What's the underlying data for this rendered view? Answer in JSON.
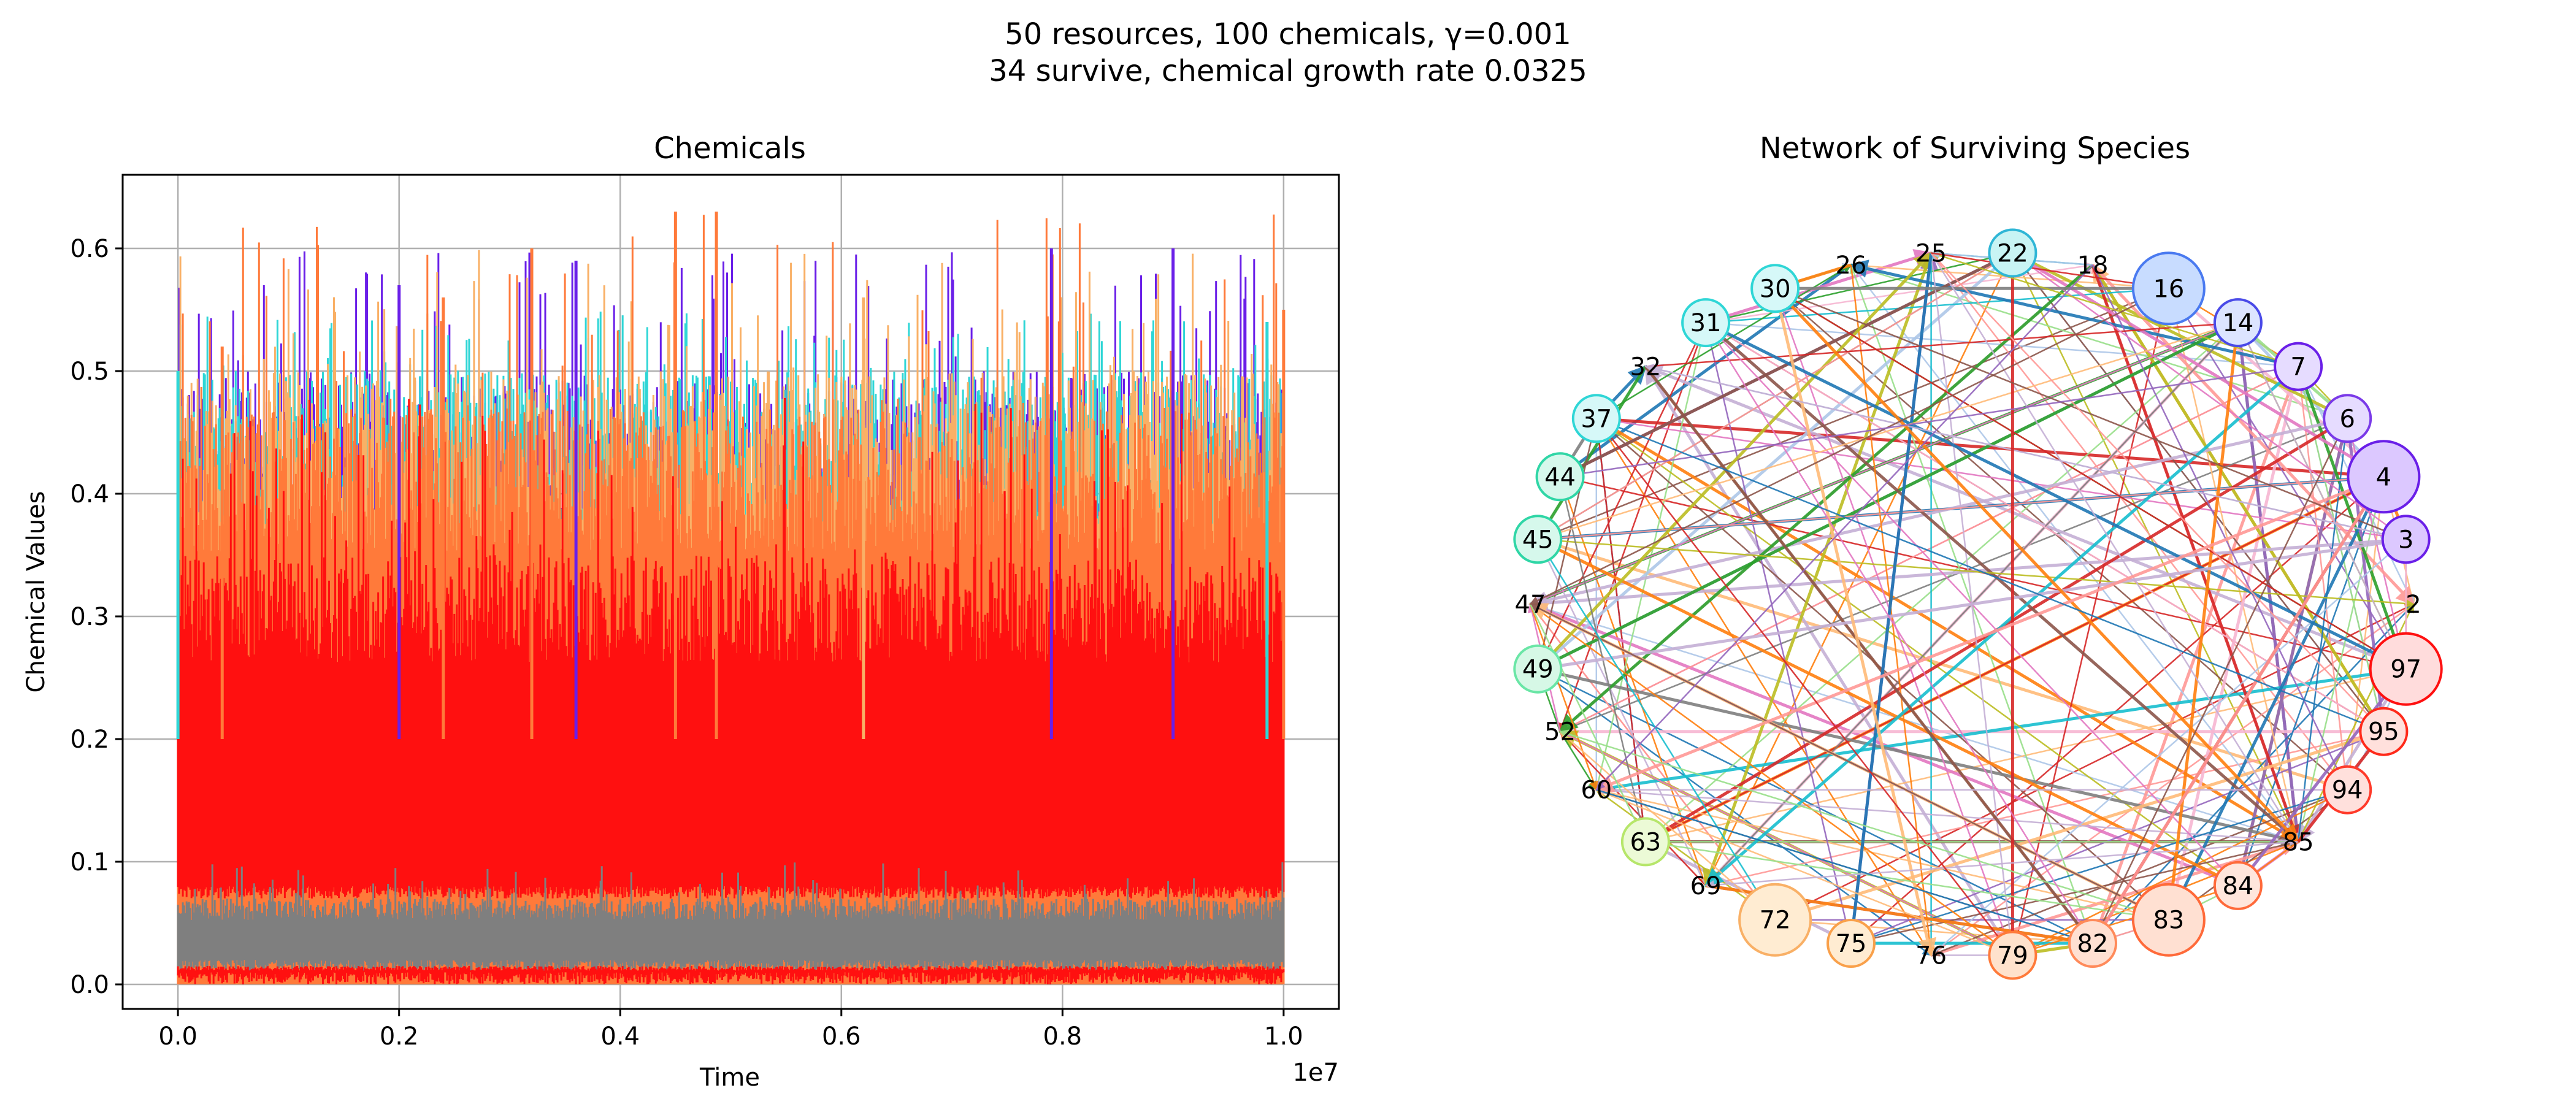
{
  "figure": {
    "suptitle_line1": "50 resources, 100 chemicals, γ=0.001",
    "suptitle_line2": "34 survive, chemical growth rate 0.0325"
  },
  "chart_data": [
    {
      "type": "line",
      "title": "Chemicals",
      "xlabel": "Time",
      "ylabel": "Chemical Values",
      "x_offset_label": "1e7",
      "xlim": [
        -0.05,
        1.05
      ],
      "ylim": [
        -0.02,
        0.66
      ],
      "x_ticks": [
        "0.0",
        "0.2",
        "0.4",
        "0.6",
        "0.8",
        "1.0"
      ],
      "y_ticks": [
        "0.0",
        "0.1",
        "0.2",
        "0.3",
        "0.4",
        "0.5",
        "0.6"
      ],
      "grid": true,
      "series_colors": [
        "#6a1fe8",
        "#2fd6d6",
        "#f9b066",
        "#ff7a3a",
        "#ff1010",
        "#7f7f7f"
      ],
      "envelope_summary": [
        {
          "color": "#6a1fe8",
          "typical_max": 0.5,
          "peak": 0.6
        },
        {
          "color": "#2fd6d6",
          "typical_max": 0.5,
          "peak": 0.55
        },
        {
          "color": "#f9b066",
          "typical_max": 0.5,
          "peak": 0.6
        },
        {
          "color": "#ff7a3a",
          "typical_max": 0.47,
          "peak": 0.63
        },
        {
          "color": "#ff1010",
          "typical_max": 0.35,
          "peak": 0.49,
          "typical_min": 0.07
        },
        {
          "color": "#7f7f7f",
          "typical_min": 0.01,
          "typical_max": 0.07,
          "peak": 0.1
        },
        {
          "color": "#ff1010",
          "typical_min": 0.0,
          "typical_max": 0.015
        }
      ],
      "x_range": [
        0.0,
        1.0
      ],
      "peak_events": [
        {
          "x": 0.0,
          "y": 0.5,
          "color": "#2fd6d6"
        },
        {
          "x": 0.04,
          "y": 0.52,
          "color": "#ff7a3a"
        },
        {
          "x": 0.2,
          "y": 0.57,
          "color": "#6a1fe8"
        },
        {
          "x": 0.24,
          "y": 0.56,
          "color": "#ff7a3a"
        },
        {
          "x": 0.32,
          "y": 0.6,
          "color": "#ff7a3a"
        },
        {
          "x": 0.36,
          "y": 0.59,
          "color": "#6a1fe8"
        },
        {
          "x": 0.45,
          "y": 0.63,
          "color": "#ff7a3a"
        },
        {
          "x": 0.487,
          "y": 0.63,
          "color": "#ff7a3a"
        },
        {
          "x": 0.62,
          "y": 0.56,
          "color": "#f9b066"
        },
        {
          "x": 0.79,
          "y": 0.6,
          "color": "#6a1fe8"
        },
        {
          "x": 0.9,
          "y": 0.6,
          "color": "#6a1fe8"
        },
        {
          "x": 0.985,
          "y": 0.54,
          "color": "#2fd6d6"
        },
        {
          "x": 1.0,
          "y": 0.55,
          "color": "#ff7a3a"
        }
      ]
    },
    {
      "type": "network",
      "title": "Network of Surviving Species",
      "nodes": [
        {
          "id": "2",
          "color": "#ffffff",
          "edge_color": "#6a1fe8",
          "r": 0
        },
        {
          "id": "3",
          "color": "#dcc8ff",
          "edge_color": "#6a1fe8",
          "r": 1
        },
        {
          "id": "4",
          "color": "#dcc8ff",
          "edge_color": "#6a1fe8",
          "r": 2
        },
        {
          "id": "6",
          "color": "#e6dcff",
          "edge_color": "#7a3ae8",
          "r": 1
        },
        {
          "id": "7",
          "color": "#e6dcff",
          "edge_color": "#6a1fe8",
          "r": 1
        },
        {
          "id": "14",
          "color": "#dce4ff",
          "edge_color": "#4a4ae8",
          "r": 1
        },
        {
          "id": "16",
          "color": "#c8dcff",
          "edge_color": "#4a7af0",
          "r": 2
        },
        {
          "id": "18",
          "color": "#ffffff",
          "edge_color": "#ffffff",
          "r": 0
        },
        {
          "id": "22",
          "color": "#c8f4f4",
          "edge_color": "#2fb6d6",
          "r": 1
        },
        {
          "id": "25",
          "color": "#ffffff",
          "edge_color": "#ffffff",
          "r": 0
        },
        {
          "id": "26",
          "color": "#ffffff",
          "edge_color": "#ffffff",
          "r": 0
        },
        {
          "id": "30",
          "color": "#d6f8f8",
          "edge_color": "#2fd6d6",
          "r": 1
        },
        {
          "id": "31",
          "color": "#d6f8f8",
          "edge_color": "#2fd6d6",
          "r": 1
        },
        {
          "id": "32",
          "color": "#ffffff",
          "edge_color": "#ffffff",
          "r": 0
        },
        {
          "id": "37",
          "color": "#d6f8f8",
          "edge_color": "#2fd6d6",
          "r": 1
        },
        {
          "id": "44",
          "color": "#d6f8ec",
          "edge_color": "#2fd6a6",
          "r": 1
        },
        {
          "id": "45",
          "color": "#d6f8ec",
          "edge_color": "#2fd6a6",
          "r": 1
        },
        {
          "id": "47",
          "color": "#ffffff",
          "edge_color": "#ffffff",
          "r": 0
        },
        {
          "id": "49",
          "color": "#d6f8e6",
          "edge_color": "#6ae6a6",
          "r": 1
        },
        {
          "id": "52",
          "color": "#ffffff",
          "edge_color": "#ffffff",
          "r": 0
        },
        {
          "id": "60",
          "color": "#ffffff",
          "edge_color": "#ffffff",
          "r": 0
        },
        {
          "id": "63",
          "color": "#ecfad6",
          "edge_color": "#b6e66a",
          "r": 1
        },
        {
          "id": "69",
          "color": "#ffffff",
          "edge_color": "#ffffff",
          "r": 0
        },
        {
          "id": "72",
          "color": "#ffecd2",
          "edge_color": "#f9b066",
          "r": 2
        },
        {
          "id": "75",
          "color": "#ffecd2",
          "edge_color": "#f9a04a",
          "r": 1
        },
        {
          "id": "76",
          "color": "#ffffff",
          "edge_color": "#ffffff",
          "r": 0
        },
        {
          "id": "79",
          "color": "#ffe2cc",
          "edge_color": "#ff7a3a",
          "r": 1
        },
        {
          "id": "82",
          "color": "#ffe0d2",
          "edge_color": "#ff8a5a",
          "r": 1
        },
        {
          "id": "83",
          "color": "#ffe0d2",
          "edge_color": "#ff6a3a",
          "r": 2
        },
        {
          "id": "84",
          "color": "#ffe6dc",
          "edge_color": "#ff6a3a",
          "r": 1
        },
        {
          "id": "85",
          "color": "#ffffff",
          "edge_color": "#ffffff",
          "r": 0
        },
        {
          "id": "94",
          "color": "#ffe0dc",
          "edge_color": "#ff3a2a",
          "r": 1
        },
        {
          "id": "95",
          "color": "#ffe0dc",
          "edge_color": "#ff2a1a",
          "r": 1
        },
        {
          "id": "97",
          "color": "#ffdcdc",
          "edge_color": "#ff1010",
          "r": 2
        }
      ],
      "edge_palette": [
        "#1f77b4",
        "#ff7f0e",
        "#2ca02c",
        "#d62728",
        "#9467bd",
        "#8c564b",
        "#e377c2",
        "#7f7f7f",
        "#bcbd22",
        "#17becf",
        "#aec7e8",
        "#ffbb78",
        "#98df8a",
        "#ff9896",
        "#c5b0d5",
        "#f7b6d2"
      ]
    }
  ]
}
